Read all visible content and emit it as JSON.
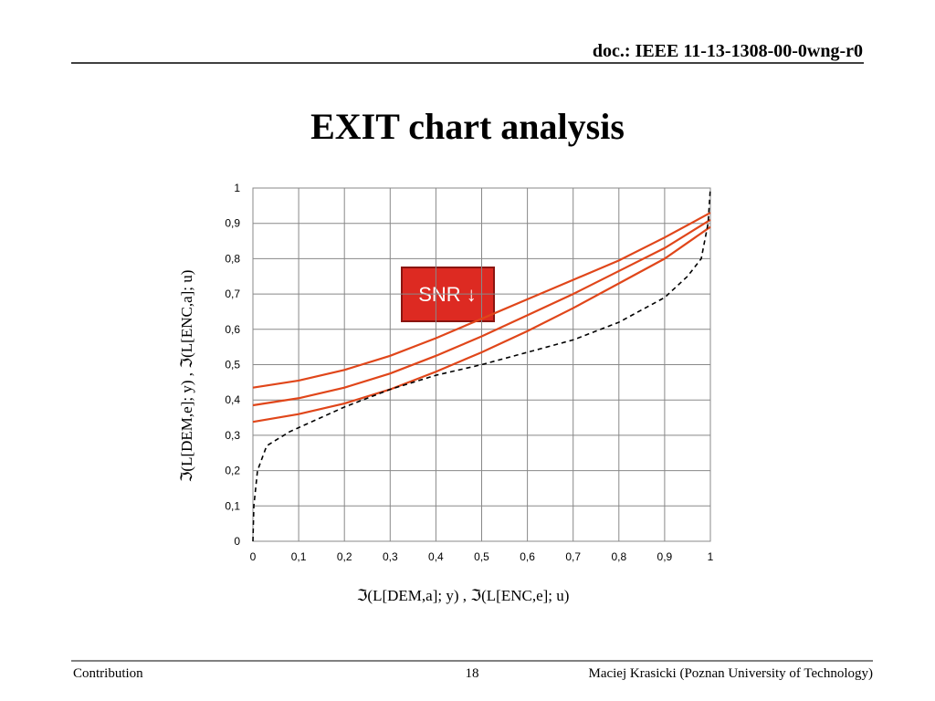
{
  "header": {
    "doc": "doc.: IEEE 11-13-1308-00-0wng-r0"
  },
  "title": "EXIT chart analysis",
  "chart_data": {
    "type": "line",
    "x_label": "ℑ(L[DEM,a]; y) ,   ℑ(L[ENC,e]; u)",
    "y_label": "ℑ(L[DEM,e]; y) ,   ℑ(L[ENC,a]; u)",
    "annotation": "SNR ↓",
    "x": [
      0,
      0.1,
      0.2,
      0.3,
      0.4,
      0.5,
      0.6,
      0.7,
      0.8,
      0.9,
      1
    ],
    "series": [
      {
        "color": "#e0461a",
        "values": [
          0.435,
          0.455,
          0.485,
          0.525,
          0.575,
          0.63,
          0.685,
          0.74,
          0.795,
          0.86,
          0.93
        ]
      },
      {
        "color": "#e0461a",
        "values": [
          0.385,
          0.405,
          0.435,
          0.475,
          0.525,
          0.58,
          0.64,
          0.7,
          0.765,
          0.83,
          0.91
        ]
      },
      {
        "color": "#e0461a",
        "values": [
          0.338,
          0.36,
          0.39,
          0.43,
          0.48,
          0.535,
          0.595,
          0.66,
          0.73,
          0.8,
          0.89
        ]
      },
      {
        "color": "#000000",
        "dashed": true,
        "x": [
          0,
          0.002,
          0.01,
          0.03,
          0.08,
          0.2,
          0.3,
          0.4,
          0.5,
          0.6,
          0.7,
          0.8,
          0.9,
          0.95,
          0.98,
          0.995,
          1
        ],
        "values": [
          0,
          0.1,
          0.2,
          0.27,
          0.31,
          0.38,
          0.43,
          0.47,
          0.5,
          0.535,
          0.57,
          0.62,
          0.69,
          0.75,
          0.8,
          0.9,
          1
        ]
      }
    ],
    "xlim": [
      0,
      1
    ],
    "ylim": [
      0,
      1
    ],
    "xticks": [
      0,
      {
        "value": 0.1,
        "label": "0,1"
      },
      {
        "value": 0.2,
        "label": "0,2"
      },
      {
        "value": 0.3,
        "label": "0,3"
      },
      {
        "value": 0.4,
        "label": "0,4"
      },
      {
        "value": 0.5,
        "label": "0,5"
      },
      {
        "value": 0.6,
        "label": "0,6"
      },
      {
        "value": 0.7,
        "label": "0,7"
      },
      {
        "value": 0.8,
        "label": "0,8"
      },
      {
        "value": 0.9,
        "label": "0,9"
      },
      1
    ],
    "yticks": [
      0,
      {
        "value": 0.1,
        "label": "0,1"
      },
      {
        "value": 0.2,
        "label": "0,2"
      },
      {
        "value": 0.3,
        "label": "0,3"
      },
      {
        "value": 0.4,
        "label": "0,4"
      },
      {
        "value": 0.5,
        "label": "0,5"
      },
      {
        "value": 0.6,
        "label": "0,6"
      },
      {
        "value": 0.7,
        "label": "0,7"
      },
      {
        "value": 0.8,
        "label": "0,8"
      },
      {
        "value": 0.9,
        "label": "0,9"
      },
      1
    ],
    "grid": true
  },
  "footer": {
    "left": "Contribution",
    "page": "18",
    "right": "Maciej Krasicki (Poznan University of Technology)"
  }
}
